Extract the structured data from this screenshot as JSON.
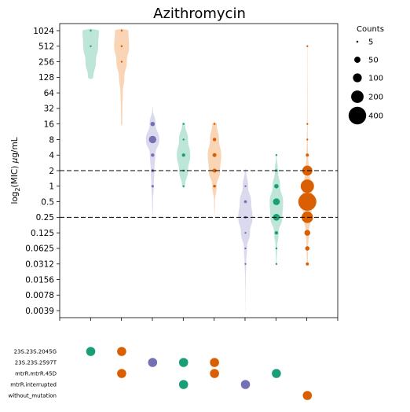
{
  "chart_data": {
    "type": "violin",
    "title": "Azithromycin",
    "ylabel_parts": [
      "log",
      "2",
      "(MIC) ",
      "μ",
      "g/mL"
    ],
    "y_scale": "log2",
    "y_ticks": [
      "1024",
      "512",
      "256",
      "128",
      "64",
      "32",
      "16",
      "8",
      "4",
      "2",
      "1",
      "0.5",
      "0.25",
      "0.125",
      "0.0625",
      "0.0312",
      "0.0156",
      "0.0078",
      "0.0039"
    ],
    "y_tick_values": [
      1024,
      512,
      256,
      128,
      64,
      32,
      16,
      8,
      4,
      2,
      1,
      0.5,
      0.25,
      0.125,
      0.0625,
      0.0312,
      0.0156,
      0.0078,
      0.0039
    ],
    "ylim": [
      0.0039,
      1024
    ],
    "reference_lines": [
      2,
      0.25
    ],
    "colors": {
      "green": "#1b9e77",
      "orange": "#d95f02",
      "purple": "#7570b3",
      "green_fill": "#b2e2d2",
      "orange_fill": "#f8cca8",
      "purple_fill": "#d4d2ea"
    },
    "legend": {
      "title": "Counts",
      "entries": [
        {
          "label": "5",
          "count": 5
        },
        {
          "label": "50",
          "count": 50
        },
        {
          "label": "100",
          "count": 100
        },
        {
          "label": "200",
          "count": 200
        },
        {
          "label": "400",
          "count": 400
        }
      ]
    },
    "mutation_rows": [
      "23S.23S.2045G",
      "23S.23S.2597T",
      "mtrR.mtrR.45D",
      "mtrR.interrupted",
      "without_mutation"
    ],
    "groups": [
      {
        "color": "green",
        "mutations": [
          0
        ],
        "violin": [
          [
            1024,
            0.55
          ],
          [
            512,
            0.5
          ],
          [
            256,
            0.35
          ],
          [
            128,
            0.18
          ]
        ],
        "points": [
          [
            1024,
            1
          ],
          [
            512,
            1
          ]
        ]
      },
      {
        "color": "orange",
        "mutations": [
          0,
          2
        ],
        "violin": [
          [
            1024,
            0.45
          ],
          [
            512,
            0.5
          ],
          [
            256,
            0.35
          ],
          [
            128,
            0.18
          ],
          [
            64,
            0.08
          ],
          [
            32,
            0.05
          ],
          [
            16,
            0.04
          ]
        ],
        "points": [
          [
            1024,
            2
          ],
          [
            512,
            5
          ],
          [
            256,
            1
          ]
        ]
      },
      {
        "color": "purple",
        "mutations": [
          1
        ],
        "violin": [
          [
            32,
            0.02
          ],
          [
            16,
            0.2
          ],
          [
            8,
            0.45
          ],
          [
            4,
            0.18
          ],
          [
            2,
            0.12
          ],
          [
            1,
            0.08
          ],
          [
            0.5,
            0.03
          ],
          [
            0.25,
            0.01
          ]
        ],
        "points": [
          [
            16,
            25
          ],
          [
            8,
            70
          ],
          [
            4,
            15
          ],
          [
            2,
            10
          ],
          [
            1,
            8
          ]
        ]
      },
      {
        "color": "green",
        "mutations": [
          1,
          3
        ],
        "violin": [
          [
            16,
            0.1
          ],
          [
            8,
            0.3
          ],
          [
            4,
            0.45
          ],
          [
            2,
            0.3
          ],
          [
            1,
            0.1
          ]
        ],
        "points": [
          [
            16,
            2
          ],
          [
            8,
            4
          ],
          [
            4,
            15
          ],
          [
            2,
            6
          ],
          [
            1,
            2
          ]
        ]
      },
      {
        "color": "orange",
        "mutations": [
          1,
          2
        ],
        "violin": [
          [
            16,
            0.15
          ],
          [
            8,
            0.3
          ],
          [
            4,
            0.45
          ],
          [
            2,
            0.38
          ],
          [
            1,
            0.15
          ],
          [
            0.5,
            0.03
          ],
          [
            0.25,
            0.01
          ]
        ],
        "points": [
          [
            16,
            5
          ],
          [
            8,
            15
          ],
          [
            4,
            20
          ],
          [
            2,
            20
          ],
          [
            1,
            10
          ]
        ]
      },
      {
        "color": "purple",
        "mutations": [
          3
        ],
        "violin": [
          [
            2,
            0.05
          ],
          [
            1,
            0.18
          ],
          [
            0.5,
            0.38
          ],
          [
            0.25,
            0.48
          ],
          [
            0.125,
            0.3
          ],
          [
            0.0625,
            0.1
          ],
          [
            0.0312,
            0.05
          ],
          [
            0.0156,
            0.02
          ],
          [
            0.0078,
            0.01
          ],
          [
            0.0039,
            0.005
          ]
        ],
        "points": [
          [
            1,
            3
          ],
          [
            0.5,
            10
          ],
          [
            0.25,
            8
          ],
          [
            0.125,
            2
          ],
          [
            0.0625,
            1
          ],
          [
            0.0312,
            3
          ]
        ]
      },
      {
        "color": "green",
        "mutations": [
          2
        ],
        "violin": [
          [
            4,
            0.02
          ],
          [
            2,
            0.1
          ],
          [
            1,
            0.25
          ],
          [
            0.5,
            0.45
          ],
          [
            0.25,
            0.4
          ],
          [
            0.125,
            0.15
          ],
          [
            0.0625,
            0.05
          ],
          [
            0.0312,
            0.02
          ]
        ],
        "points": [
          [
            4,
            3
          ],
          [
            2,
            8
          ],
          [
            1,
            25
          ],
          [
            0.5,
            60
          ],
          [
            0.25,
            60
          ],
          [
            0.125,
            15
          ],
          [
            0.0625,
            5
          ],
          [
            0.0312,
            2
          ]
        ]
      },
      {
        "color": "orange",
        "mutations": [
          4
        ],
        "violin": [
          [
            512,
            0.01
          ],
          [
            256,
            0.012
          ],
          [
            128,
            0.012
          ],
          [
            64,
            0.015
          ],
          [
            32,
            0.015
          ],
          [
            16,
            0.02
          ],
          [
            8,
            0.03
          ],
          [
            4,
            0.05
          ],
          [
            2,
            0.12
          ],
          [
            1,
            0.28
          ],
          [
            0.5,
            0.4
          ],
          [
            0.25,
            0.25
          ],
          [
            0.125,
            0.1
          ],
          [
            0.0625,
            0.05
          ],
          [
            0.0312,
            0.03
          ]
        ],
        "points": [
          [
            512,
            1
          ],
          [
            16,
            4
          ],
          [
            8,
            3
          ],
          [
            4,
            12
          ],
          [
            2,
            130
          ],
          [
            1,
            230
          ],
          [
            0.5,
            420
          ],
          [
            0.25,
            170
          ],
          [
            0.125,
            45
          ],
          [
            0.0625,
            25
          ],
          [
            0.0312,
            12
          ]
        ]
      }
    ]
  }
}
